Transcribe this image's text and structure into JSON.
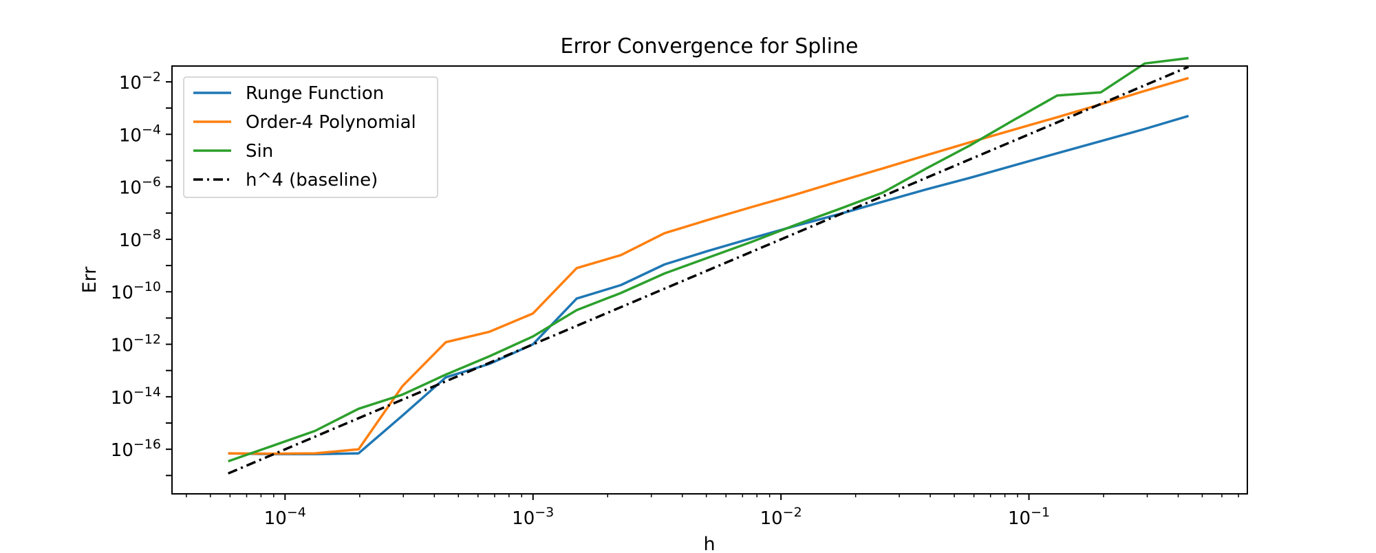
{
  "chart_data": {
    "type": "line",
    "title": "Error Convergence for Spline",
    "xlabel": "h",
    "ylabel": "Err",
    "xscale": "log",
    "yscale": "log",
    "xlim": [
      3.5e-05,
      0.76
    ],
    "ylim": [
      2e-18,
      0.04
    ],
    "grid": false,
    "legend_position": "top-left",
    "x_ticks": [
      {
        "value": 0.0001,
        "base": "10",
        "exp": "−4"
      },
      {
        "value": 0.001,
        "base": "10",
        "exp": "−3"
      },
      {
        "value": 0.01,
        "base": "10",
        "exp": "−2"
      },
      {
        "value": 0.1,
        "base": "10",
        "exp": "−1"
      }
    ],
    "y_ticks": [
      {
        "value": 1e-16,
        "base": "10",
        "exp": "−16"
      },
      {
        "value": 1e-14,
        "base": "10",
        "exp": "−14"
      },
      {
        "value": 1e-12,
        "base": "10",
        "exp": "−12"
      },
      {
        "value": 1e-10,
        "base": "10",
        "exp": "−10"
      },
      {
        "value": 1e-08,
        "base": "10",
        "exp": "−8"
      },
      {
        "value": 1e-06,
        "base": "10",
        "exp": "−6"
      },
      {
        "value": 0.0001,
        "base": "10",
        "exp": "−4"
      },
      {
        "value": 0.01,
        "base": "10",
        "exp": "−2"
      }
    ],
    "series": [
      {
        "name": "Runge Function",
        "color": "#1f77b4",
        "style": "solid",
        "x": [
          5.9e-05,
          8.8e-05,
          0.000132,
          0.000198,
          0.000297,
          0.000445,
          0.000668,
          0.001,
          0.0015,
          0.00226,
          0.00339,
          0.00508,
          0.00762,
          0.0114,
          0.0171,
          0.0257,
          0.0386,
          0.0579,
          0.0868,
          0.13,
          0.195,
          0.293,
          0.44
        ],
        "y": [
          7e-17,
          6.5e-17,
          6.5e-17,
          7e-17,
          1.9e-15,
          5.5e-14,
          1.8e-13,
          1e-12,
          5.5e-11,
          1.8e-10,
          1.1e-09,
          3.6e-09,
          1.1e-08,
          3.2e-08,
          9e-08,
          2.7e-07,
          8e-07,
          2.2e-06,
          6.5e-06,
          1.9e-05,
          5.5e-05,
          0.00016,
          0.0005
        ]
      },
      {
        "name": "Order-4 Polynomial",
        "color": "#ff7f0e",
        "style": "solid",
        "x": [
          5.9e-05,
          8.8e-05,
          0.000132,
          0.000198,
          0.000297,
          0.000445,
          0.000668,
          0.001,
          0.0015,
          0.00226,
          0.00339,
          0.00508,
          0.00762,
          0.0114,
          0.0171,
          0.0257,
          0.0386,
          0.0579,
          0.0868,
          0.13,
          0.195,
          0.293,
          0.44
        ],
        "y": [
          7e-17,
          6.8e-17,
          7e-17,
          1e-16,
          2.5e-14,
          1.2e-12,
          3e-12,
          1.5e-11,
          8e-10,
          2.5e-09,
          1.7e-08,
          5.5e-08,
          1.7e-07,
          5e-07,
          1.6e-06,
          5e-06,
          1.6e-05,
          5e-05,
          0.00015,
          0.00045,
          0.0014,
          0.0045,
          0.014
        ]
      },
      {
        "name": "Sin",
        "color": "#2ca02c",
        "style": "solid",
        "x": [
          5.9e-05,
          8.8e-05,
          0.000132,
          0.000198,
          0.000297,
          0.000445,
          0.000668,
          0.001,
          0.0015,
          0.00226,
          0.00339,
          0.00508,
          0.00762,
          0.0114,
          0.0171,
          0.0257,
          0.0386,
          0.0579,
          0.0868,
          0.13,
          0.195,
          0.293,
          0.44
        ],
        "y": [
          3.5e-17,
          1.3e-16,
          5e-16,
          3.5e-15,
          1.2e-14,
          7e-14,
          3.5e-13,
          2e-12,
          2e-11,
          9e-11,
          5e-10,
          2e-09,
          8e-09,
          3.5e-08,
          1.4e-07,
          6e-07,
          5e-06,
          3.8e-05,
          0.00035,
          0.003,
          0.004,
          0.05,
          0.08
        ]
      },
      {
        "name": "h^4 (baseline)",
        "color": "#000000",
        "style": "dashdot",
        "x": [
          5.9e-05,
          0.44
        ],
        "y": [
          1.2e-17,
          0.0375
        ]
      }
    ]
  }
}
